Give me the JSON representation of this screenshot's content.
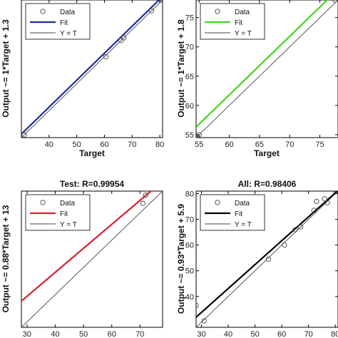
{
  "chart_data": [
    {
      "type": "scatter",
      "title": "",
      "xlabel": "Target",
      "ylabel": "Output ~= 1*Target + 1.3",
      "xlim": [
        30,
        81
      ],
      "ylim": [
        30,
        81
      ],
      "xticks": [
        40,
        50,
        60,
        70,
        80
      ],
      "yticks": [],
      "fit": {
        "slope": 1,
        "intercept": 1.3,
        "color": "#1f2f9c"
      },
      "legend": [
        "Data",
        "Fit",
        "Y = T"
      ],
      "legend_position": "top-left",
      "points": [
        [
          31,
          31
        ],
        [
          60.5,
          60
        ],
        [
          66,
          66
        ],
        [
          67,
          67
        ],
        [
          77,
          77
        ],
        [
          80.5,
          81
        ]
      ]
    },
    {
      "type": "scatter",
      "title": "",
      "xlabel": "Target",
      "ylabel": "Output ~= 1*Target + 1.8",
      "xlim": [
        54.5,
        78
      ],
      "ylim": [
        54.5,
        78
      ],
      "xticks": [
        55,
        60,
        65,
        70,
        75
      ],
      "yticks": [
        55,
        60,
        65,
        70,
        75
      ],
      "fit": {
        "slope": 1,
        "intercept": 1.8,
        "color": "#44d61c"
      },
      "legend": [
        "Data",
        "Fit",
        "Y = T"
      ],
      "legend_position": "top-left",
      "points": [
        [
          55,
          55
        ],
        [
          77.5,
          78
        ]
      ]
    },
    {
      "type": "scatter",
      "title": "Test: R=0.99954",
      "xlabel": "",
      "ylabel": "Output ~= 0.88*Target + 13",
      "xlim": [
        28,
        78
      ],
      "ylim": [
        28,
        78
      ],
      "xticks": [
        30,
        40,
        50,
        60,
        70
      ],
      "yticks": [],
      "fit": {
        "slope": 0.88,
        "intercept": 13,
        "color": "#d81f2f"
      },
      "legend": [
        "Data",
        "Fit",
        "Y = T"
      ],
      "legend_position": "top-left",
      "points": [
        [
          71,
          73.5
        ],
        [
          72,
          76.5
        ]
      ]
    },
    {
      "type": "scatter",
      "title": "All: R=0.98406",
      "xlabel": "",
      "ylabel": "Output ~= 0.93*Target + 5.9",
      "xlim": [
        28,
        81
      ],
      "ylim": [
        28,
        81
      ],
      "xticks": [
        30,
        40,
        50,
        60,
        70,
        80
      ],
      "yticks": [
        40,
        50,
        60,
        70,
        80
      ],
      "fit": {
        "slope": 0.93,
        "intercept": 5.9,
        "color": "#000000"
      },
      "legend": [
        "Data",
        "Fit",
        "Y = T"
      ],
      "legend_position": "top-left",
      "points": [
        [
          28,
          36.5
        ],
        [
          31,
          30.5
        ],
        [
          55,
          54.5
        ],
        [
          61,
          60
        ],
        [
          65,
          66
        ],
        [
          67,
          67
        ],
        [
          72,
          73.5
        ],
        [
          73,
          77
        ],
        [
          76,
          78
        ],
        [
          77,
          76.5
        ],
        [
          80,
          81
        ]
      ]
    }
  ]
}
